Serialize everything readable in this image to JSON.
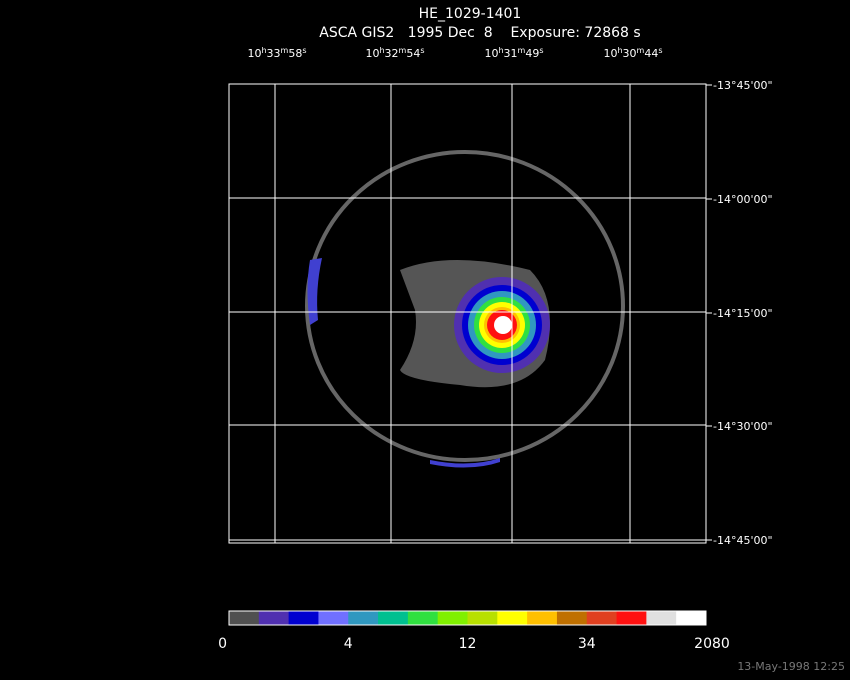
{
  "title": "HE_1029-1401",
  "subtitle": "ASCA GIS2   1995 Dec  8    Exposure: 72868 s",
  "ra_labels": [
    "10h33m58s",
    "10h32m54s",
    "10h31m49s",
    "10h30m44s"
  ],
  "dec_labels": [
    "-13°45'00\"",
    "-14°00'00\"",
    "-14°15'00\"",
    "-14°30'00\"",
    "-14°45'00\""
  ],
  "colorbar": {
    "colors": [
      "#505050",
      "#5030b0",
      "#0000d0",
      "#7070ff",
      "#3098c0",
      "#00c090",
      "#30e040",
      "#80f000",
      "#b8e000",
      "#ffff00",
      "#ffc000",
      "#c07000",
      "#e04020",
      "#ff1010",
      "#e0e0e0",
      "#ffffff"
    ],
    "labels": [
      "0",
      "4",
      "12",
      "34",
      "2080"
    ]
  },
  "timestamp": "13-May-1998 12:25"
}
